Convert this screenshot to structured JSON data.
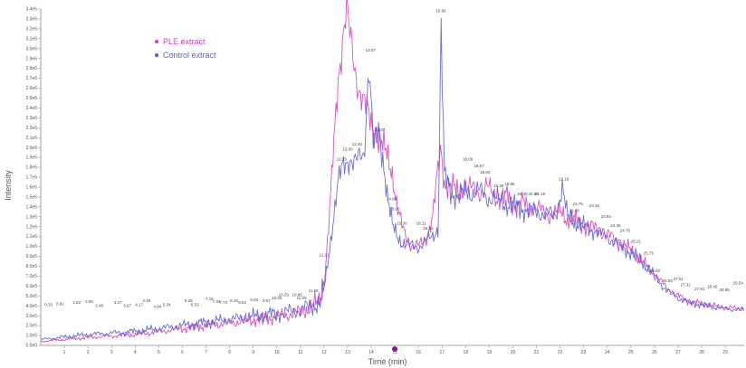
{
  "chart_data": {
    "type": "line",
    "title": "",
    "xlabel": "Time (min)",
    "ylabel": "Intensity",
    "xlim": [
      0,
      29.8
    ],
    "ylim": [
      0,
      3400000
    ],
    "x_ticks": [
      1,
      2,
      3,
      4,
      5,
      6,
      7,
      8,
      9,
      10,
      11,
      12,
      13,
      14,
      15,
      16,
      17,
      18,
      19,
      20,
      21,
      22,
      23,
      24,
      25,
      26,
      27,
      28,
      29
    ],
    "y_ticks": [
      "0.0e0",
      "1.0e5",
      "2.0e5",
      "3.0e5",
      "4.0e5",
      "5.0e5",
      "6.0e5",
      "7.0e5",
      "8.0e5",
      "9.0e5",
      "1.0e6",
      "1.1e6",
      "1.2e6",
      "1.3e6",
      "1.4e6",
      "1.5e6",
      "1.6e6",
      "1.7e6",
      "1.8e6",
      "1.9e6",
      "2.0e6",
      "2.1e6",
      "2.2e6",
      "2.3e6",
      "2.4e6",
      "2.5e6",
      "2.6e6",
      "2.7e6",
      "2.8e6",
      "2.9e6",
      "3.0e6",
      "3.1e6",
      "3.2e6",
      "3.3e6",
      "3.4e6"
    ],
    "legend": {
      "position": "top-left"
    },
    "grid": false,
    "series": [
      {
        "name": "PLE extract",
        "color": "#d63fb8",
        "x": [
          0,
          2,
          4,
          6,
          8,
          10,
          11,
          11.5,
          11.8,
          12,
          12.2,
          12.4,
          12.6,
          12.8,
          12.95,
          13.1,
          13.3,
          13.5,
          13.7,
          13.9,
          14.1,
          14.3,
          14.5,
          14.7,
          14.9,
          15.1,
          15.3,
          15.5,
          15.7,
          16,
          16.3,
          16.6,
          16.85,
          16.95,
          17.1,
          17.4,
          17.7,
          18,
          18.3,
          18.6,
          18.9,
          19.2,
          19.5,
          19.8,
          20.1,
          20.4,
          20.7,
          21,
          21.4,
          21.8,
          22.1,
          22.3,
          22.6,
          23,
          23.5,
          24,
          24.5,
          25,
          25.5,
          26,
          26.5,
          27,
          27.5,
          28,
          28.5,
          29,
          29.8
        ],
        "values": [
          40000,
          80000,
          110000,
          170000,
          230000,
          290000,
          340000,
          390000,
          440000,
          620000,
          1200000,
          1950000,
          2700000,
          3150000,
          3390000,
          3100000,
          2800000,
          2600000,
          2450000,
          2300000,
          2200000,
          2100000,
          2000000,
          1900000,
          1750000,
          1400000,
          1200000,
          1080000,
          1020000,
          1000000,
          1060000,
          1300000,
          1800000,
          2000000,
          1650000,
          1600000,
          1550000,
          1600000,
          1580000,
          1550000,
          1600000,
          1520000,
          1480000,
          1500000,
          1420000,
          1440000,
          1380000,
          1400000,
          1320000,
          1330000,
          1340000,
          1280000,
          1270000,
          1220000,
          1180000,
          1120000,
          1040000,
          960000,
          840000,
          720000,
          580000,
          500000,
          440000,
          420000,
          400000,
          380000,
          370000
        ]
      },
      {
        "name": "Control extract",
        "color": "#5b5bd6",
        "x": [
          0,
          2,
          4,
          6,
          8,
          10,
          11,
          11.5,
          11.8,
          12,
          12.2,
          12.4,
          12.6,
          12.8,
          12.95,
          13.1,
          13.3,
          13.5,
          13.7,
          13.9,
          14.1,
          14.3,
          14.5,
          14.7,
          14.9,
          15.1,
          15.3,
          15.5,
          15.7,
          16,
          16.3,
          16.6,
          16.85,
          16.95,
          17.1,
          17.4,
          17.7,
          18,
          18.3,
          18.6,
          18.9,
          19.2,
          19.5,
          19.8,
          20.1,
          20.4,
          20.7,
          21,
          21.4,
          21.8,
          22.1,
          22.3,
          22.6,
          23,
          23.5,
          24,
          24.5,
          25,
          25.5,
          26,
          26.5,
          27,
          27.5,
          28,
          28.5,
          29,
          29.8
        ],
        "values": [
          60000,
          110000,
          140000,
          200000,
          260000,
          320000,
          360000,
          400000,
          430000,
          560000,
          900000,
          1300000,
          1650000,
          1800000,
          1850000,
          1900000,
          1850000,
          1880000,
          1920000,
          2900000,
          2000000,
          2150000,
          1900000,
          1500000,
          1200000,
          1100000,
          1050000,
          1020000,
          1000000,
          1000000,
          1050000,
          1100000,
          1200000,
          3300000,
          1700000,
          1550000,
          1500000,
          1560000,
          1540000,
          1560000,
          1500000,
          1480000,
          1460000,
          1420000,
          1400000,
          1380000,
          1360000,
          1350000,
          1330000,
          1320000,
          1600000,
          1300000,
          1260000,
          1200000,
          1160000,
          1100000,
          1020000,
          940000,
          840000,
          700000,
          560000,
          480000,
          430000,
          410000,
          390000,
          370000,
          360000
        ]
      }
    ],
    "annotations": [
      {
        "x": 0.33,
        "y": 380000,
        "text": "0.33"
      },
      {
        "x": 0.82,
        "y": 390000,
        "text": "0.82"
      },
      {
        "x": 1.52,
        "y": 400000,
        "text": "1.52"
      },
      {
        "x": 2.05,
        "y": 410000,
        "text": "2.05"
      },
      {
        "x": 2.48,
        "y": 370000,
        "text": "2.48"
      },
      {
        "x": 3.27,
        "y": 400000,
        "text": "3.27"
      },
      {
        "x": 3.67,
        "y": 370000,
        "text": "3.67"
      },
      {
        "x": 4.17,
        "y": 380000,
        "text": "4.17"
      },
      {
        "x": 4.48,
        "y": 420000,
        "text": "4.48"
      },
      {
        "x": 4.94,
        "y": 360000,
        "text": "4.94"
      },
      {
        "x": 5.34,
        "y": 380000,
        "text": "5.34"
      },
      {
        "x": 6.26,
        "y": 420000,
        "text": "6.26"
      },
      {
        "x": 6.53,
        "y": 380000,
        "text": "6.53"
      },
      {
        "x": 7.15,
        "y": 440000,
        "text": "7.15"
      },
      {
        "x": 7.44,
        "y": 410000,
        "text": "7.44"
      },
      {
        "x": 7.73,
        "y": 400000,
        "text": "7.73"
      },
      {
        "x": 8.19,
        "y": 420000,
        "text": "8.19"
      },
      {
        "x": 8.54,
        "y": 400000,
        "text": "8.54"
      },
      {
        "x": 9.04,
        "y": 430000,
        "text": "9.04"
      },
      {
        "x": 9.57,
        "y": 420000,
        "text": "9.57"
      },
      {
        "x": 10.0,
        "y": 450000,
        "text": "10.00"
      },
      {
        "x": 10.29,
        "y": 480000,
        "text": "10.29"
      },
      {
        "x": 10.86,
        "y": 480000,
        "text": "10.86"
      },
      {
        "x": 11.05,
        "y": 450000,
        "text": "11.05"
      },
      {
        "x": 11.55,
        "y": 520000,
        "text": "11.55"
      },
      {
        "x": 12.01,
        "y": 880000,
        "text": "12.01"
      },
      {
        "x": 12.75,
        "y": 1850000,
        "text": "12.75"
      },
      {
        "x": 13.0,
        "y": 1950000,
        "text": "13.00"
      },
      {
        "x": 13.4,
        "y": 2000000,
        "text": "13.40"
      },
      {
        "x": 13.97,
        "y": 2950000,
        "text": "13.97"
      },
      {
        "x": 14.37,
        "y": 2150000,
        "text": "14.37"
      },
      {
        "x": 14.86,
        "y": 1450000,
        "text": "14.86"
      },
      {
        "x": 14.99,
        "y": 1350000,
        "text": "15.00"
      },
      {
        "x": 15.3,
        "y": 1200000,
        "text": "15.30"
      },
      {
        "x": 16.11,
        "y": 1200000,
        "text": "16.11"
      },
      {
        "x": 16.41,
        "y": 1150000,
        "text": "16.41"
      },
      {
        "x": 16.95,
        "y": 3350000,
        "text": "16.95"
      },
      {
        "x": 18.09,
        "y": 1850000,
        "text": "18.09"
      },
      {
        "x": 18.57,
        "y": 1780000,
        "text": "18.57"
      },
      {
        "x": 18.82,
        "y": 1720000,
        "text": "18.82"
      },
      {
        "x": 19.39,
        "y": 1580000,
        "text": "19.39"
      },
      {
        "x": 19.86,
        "y": 1600000,
        "text": "19.86"
      },
      {
        "x": 20.4,
        "y": 1500000,
        "text": "20.40"
      },
      {
        "x": 20.87,
        "y": 1500000,
        "text": "20.87"
      },
      {
        "x": 21.15,
        "y": 1500000,
        "text": "21.15"
      },
      {
        "x": 22.16,
        "y": 1650000,
        "text": "22.16"
      },
      {
        "x": 22.6,
        "y": 1330000,
        "text": "22.60"
      },
      {
        "x": 22.75,
        "y": 1400000,
        "text": "22.75"
      },
      {
        "x": 23.45,
        "y": 1380000,
        "text": "23.45"
      },
      {
        "x": 23.94,
        "y": 1270000,
        "text": "23.94"
      },
      {
        "x": 24.35,
        "y": 1180000,
        "text": "24.35"
      },
      {
        "x": 24.75,
        "y": 1130000,
        "text": "24.75"
      },
      {
        "x": 25.21,
        "y": 1020000,
        "text": "25.21"
      },
      {
        "x": 25.75,
        "y": 900000,
        "text": "25.75"
      },
      {
        "x": 26.02,
        "y": 720000,
        "text": "26.02"
      },
      {
        "x": 26.55,
        "y": 620000,
        "text": "26.55"
      },
      {
        "x": 27.01,
        "y": 640000,
        "text": "27.01"
      },
      {
        "x": 27.31,
        "y": 580000,
        "text": "27.31"
      },
      {
        "x": 27.91,
        "y": 540000,
        "text": "27.91"
      },
      {
        "x": 28.45,
        "y": 560000,
        "text": "28.45"
      },
      {
        "x": 28.96,
        "y": 530000,
        "text": "28.96"
      },
      {
        "x": 29.54,
        "y": 600000,
        "text": "29.54"
      }
    ]
  }
}
